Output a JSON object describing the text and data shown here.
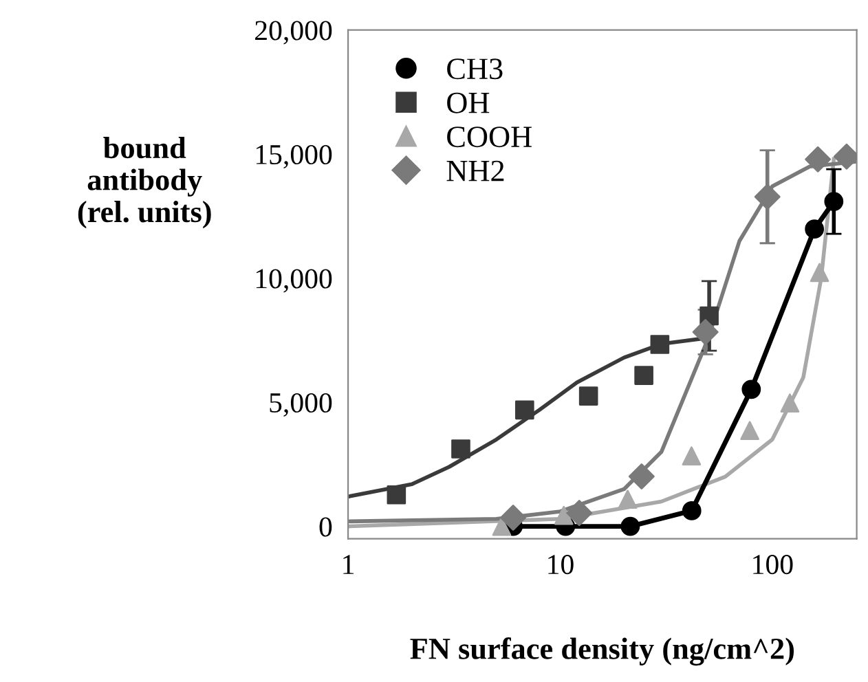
{
  "chart_data": {
    "type": "scatter",
    "xlabel": "FN surface density (ng/cm^2)",
    "ylabel": "bound\nantibody\n(rel. units)",
    "log": "x",
    "xlim": [
      1,
      250
    ],
    "xticks": [
      1,
      10,
      100
    ],
    "ylim": [
      -500,
      20000
    ],
    "yticks": [
      0,
      {
        "value": 5000,
        "label": "5,000"
      },
      {
        "value": 10000,
        "label": "10,000"
      },
      {
        "value": 15000,
        "label": "15,000"
      },
      {
        "value": 20000,
        "label": "20,000"
      }
    ],
    "grid": false,
    "legend": "top left",
    "series": [
      {
        "name": "CH3",
        "type": "line",
        "marker": "circle",
        "color": "#000000",
        "x": [
          6,
          10.6,
          21.4,
          41.7,
          79.6,
          158,
          195
        ],
        "values": [
          0,
          0,
          0,
          630,
          5520,
          11980,
          13090
        ],
        "errors": [
          null,
          null,
          null,
          null,
          null,
          null,
          1300
        ]
      },
      {
        "name": "OH",
        "marker": "square",
        "color": "#3a3a3a",
        "x": [
          1.69,
          3.4,
          6.8,
          13.6,
          24.8,
          29.5,
          50.4
        ],
        "values": [
          1270,
          3120,
          4690,
          5250,
          6080,
          7330,
          8480
        ],
        "errors": [
          null,
          null,
          null,
          null,
          null,
          null,
          1400
        ]
      },
      {
        "name": "COOH",
        "marker": "triangle",
        "color": "#a8a8a8",
        "x": [
          5.3,
          10.4,
          20.8,
          41.6,
          78.3,
          121,
          167
        ],
        "values": [
          0,
          440,
          1090,
          2840,
          3860,
          4970,
          10230
        ]
      },
      {
        "name": "NH2",
        "marker": "diamond",
        "color": "#7a7a7a",
        "x": [
          6,
          12.3,
          24.2,
          48.4,
          94.8,
          164,
          224
        ],
        "values": [
          350,
          540,
          2010,
          7830,
          13280,
          14790,
          14900
        ],
        "errors": [
          null,
          null,
          null,
          900,
          1870,
          null,
          null
        ]
      },
      {
        "type": "line",
        "marker": "none",
        "color": "#3a3a3a",
        "x": [
          1,
          2,
          3,
          5,
          8,
          12,
          20,
          30,
          50
        ],
        "values": [
          1200,
          1700,
          2400,
          3500,
          4700,
          5800,
          6800,
          7350,
          7600
        ]
      },
      {
        "type": "line",
        "marker": "none",
        "color": "#a8a8a8",
        "x": [
          1,
          10,
          30,
          60,
          100,
          140,
          170,
          195
        ],
        "values": [
          0,
          300,
          1000,
          2000,
          3500,
          6000,
          10000,
          14800
        ]
      },
      {
        "type": "line",
        "marker": "none",
        "color": "#7a7a7a",
        "x": [
          1,
          5,
          10,
          20,
          30,
          50,
          70,
          100,
          150,
          250
        ],
        "values": [
          200,
          300,
          600,
          1500,
          3000,
          7600,
          11500,
          13700,
          14500,
          14700
        ]
      }
    ]
  }
}
